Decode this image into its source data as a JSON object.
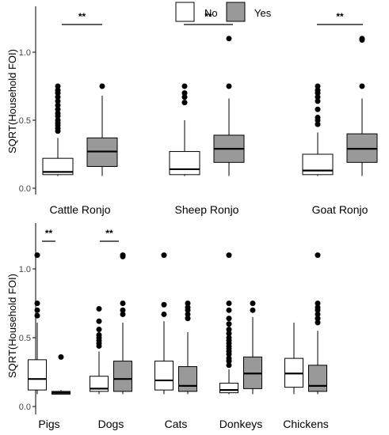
{
  "legend": [
    {
      "label": "No",
      "color": "#ffffff"
    },
    {
      "label": "Yes",
      "color": "#999999"
    }
  ],
  "chart_data": [
    {
      "type": "boxplot",
      "panel": "top",
      "ylabel": "SQRT(Household FOI)",
      "ylim": [
        0,
        1.25
      ],
      "yticks": [
        0.0,
        0.5,
        1.0
      ],
      "ytick_labels": [
        "0.0",
        "0.5",
        "1.0"
      ],
      "series_names": [
        "No",
        "Yes"
      ],
      "groups": [
        {
          "label": "Cattle Ronjo",
          "significance": "**",
          "boxes": [
            {
              "series": "No",
              "min": 0.09,
              "q1": 0.1,
              "median": 0.12,
              "q3": 0.22,
              "max": 0.37,
              "outliers": [
                0.42,
                0.44,
                0.46,
                0.48,
                0.5,
                0.53,
                0.55,
                0.58,
                0.61,
                0.64,
                0.67,
                0.7,
                0.72,
                0.75
              ]
            },
            {
              "series": "Yes",
              "min": 0.09,
              "q1": 0.16,
              "median": 0.27,
              "q3": 0.37,
              "max": 0.68,
              "outliers": [
                0.75
              ]
            }
          ]
        },
        {
          "label": "Sheep Ronjo",
          "significance": "**",
          "boxes": [
            {
              "series": "No",
              "min": 0.09,
              "q1": 0.1,
              "median": 0.14,
              "q3": 0.27,
              "max": 0.5,
              "outliers": [
                0.63,
                0.67,
                0.7,
                0.75
              ]
            },
            {
              "series": "Yes",
              "min": 0.09,
              "q1": 0.19,
              "median": 0.29,
              "q3": 0.39,
              "max": 0.66,
              "outliers": [
                0.75,
                1.1
              ]
            }
          ]
        },
        {
          "label": "Goat Ronjo",
          "significance": "**",
          "boxes": [
            {
              "series": "No",
              "min": 0.09,
              "q1": 0.1,
              "median": 0.13,
              "q3": 0.25,
              "max": 0.41,
              "outliers": [
                0.47,
                0.5,
                0.52,
                0.58,
                0.64,
                0.67,
                0.7,
                0.72,
                0.75
              ]
            },
            {
              "series": "Yes",
              "min": 0.09,
              "q1": 0.19,
              "median": 0.29,
              "q3": 0.4,
              "max": 0.66,
              "outliers": [
                0.75,
                1.09,
                1.1
              ]
            }
          ]
        }
      ]
    },
    {
      "type": "boxplot",
      "panel": "bottom",
      "ylabel": "SQRT(Household FOI)",
      "ylim": [
        0,
        1.25
      ],
      "yticks": [
        0.0,
        0.5,
        1.0
      ],
      "ytick_labels": [
        "0.0",
        "0.5",
        "1.0"
      ],
      "series_names": [
        "No",
        "Yes"
      ],
      "groups": [
        {
          "label": "Pigs",
          "significance": "**",
          "boxes": [
            {
              "series": "No",
              "min": 0.09,
              "q1": 0.12,
              "median": 0.2,
              "q3": 0.34,
              "max": 0.61,
              "outliers": [
                0.66,
                0.7,
                0.75,
                1.1
              ]
            },
            {
              "series": "Yes",
              "min": 0.09,
              "q1": 0.09,
              "median": 0.1,
              "q3": 0.11,
              "max": 0.12,
              "outliers": [
                0.36
              ]
            }
          ]
        },
        {
          "label": "Dogs",
          "significance": "**",
          "boxes": [
            {
              "series": "No",
              "min": 0.09,
              "q1": 0.11,
              "median": 0.13,
              "q3": 0.22,
              "max": 0.4,
              "outliers": [
                0.44,
                0.46,
                0.48,
                0.5,
                0.52,
                0.56,
                0.62,
                0.71
              ]
            },
            {
              "series": "Yes",
              "min": 0.09,
              "q1": 0.11,
              "median": 0.2,
              "q3": 0.33,
              "max": 0.61,
              "outliers": [
                0.67,
                0.7,
                0.75,
                1.09,
                1.1
              ]
            }
          ]
        },
        {
          "label": "Cats",
          "significance": "",
          "boxes": [
            {
              "series": "No",
              "min": 0.09,
              "q1": 0.12,
              "median": 0.19,
              "q3": 0.33,
              "max": 0.62,
              "outliers": [
                0.67,
                0.74,
                1.1
              ]
            },
            {
              "series": "Yes",
              "min": 0.09,
              "q1": 0.11,
              "median": 0.15,
              "q3": 0.29,
              "max": 0.54,
              "outliers": [
                0.64,
                0.67,
                0.7,
                0.72,
                0.75
              ]
            }
          ]
        },
        {
          "label": "Donkeys",
          "significance": "**",
          "boxes": [
            {
              "series": "No",
              "min": 0.09,
              "q1": 0.1,
              "median": 0.12,
              "q3": 0.17,
              "max": 0.27,
              "outliers": [
                0.3,
                0.33,
                0.35,
                0.38,
                0.4,
                0.42,
                0.44,
                0.46,
                0.48,
                0.5,
                0.53,
                0.56,
                0.6,
                0.64,
                0.7,
                0.75,
                1.1
              ]
            },
            {
              "series": "Yes",
              "min": 0.09,
              "q1": 0.13,
              "median": 0.24,
              "q3": 0.36,
              "max": 0.65,
              "outliers": [
                0.7,
                0.75
              ]
            }
          ]
        },
        {
          "label": "Chickens",
          "significance": "",
          "boxes": [
            {
              "series": "No",
              "min": 0.09,
              "q1": 0.14,
              "median": 0.24,
              "q3": 0.35,
              "max": 0.61,
              "outliers": []
            },
            {
              "series": "Yes",
              "min": 0.09,
              "q1": 0.11,
              "median": 0.15,
              "q3": 0.3,
              "max": 0.55,
              "outliers": [
                0.61,
                0.64,
                0.67,
                0.7,
                0.72,
                0.75,
                1.1
              ]
            }
          ]
        }
      ]
    }
  ]
}
